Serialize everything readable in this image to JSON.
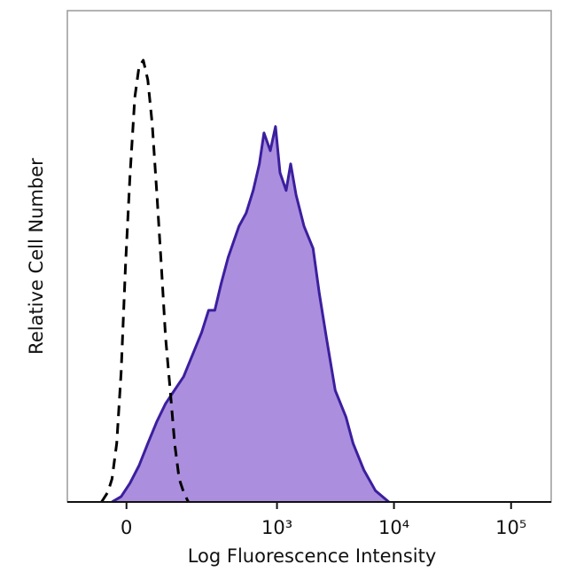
{
  "chart_data": {
    "type": "histogram-overlay",
    "xlabel": "Log Fluorescence Intensity",
    "ylabel": "Relative Cell Number",
    "xscale": "biexponential",
    "xlim": [
      -150,
      220000
    ],
    "ylim": [
      0,
      100
    ],
    "xticks": [
      0,
      {
        "value": 1000,
        "label": "10³"
      },
      {
        "value": 10000,
        "label": "10⁴"
      },
      {
        "value": 100000,
        "label": "10⁵"
      }
    ],
    "series": [
      {
        "color": "#000000",
        "line_style": "dashed",
        "fill": false,
        "x": [
          -53,
          -39,
          -30,
          -20,
          -11,
          -2,
          7,
          17,
          26,
          35,
          45,
          55,
          66,
          77,
          88,
          101,
          114,
          128,
          143,
          160
        ],
        "values": [
          0,
          2.0,
          4.7,
          11.9,
          26.4,
          48.0,
          66.1,
          82.3,
          88.6,
          89.9,
          85.9,
          76.9,
          62.5,
          48.0,
          33.6,
          22.7,
          11.9,
          4.7,
          2.0,
          0
        ]
      },
      {
        "color": "#3b1f9e",
        "fill_color": "#ab8fde",
        "line_style": "solid",
        "fill": true,
        "x": [
          -30,
          -11,
          7,
          26,
          45,
          66,
          88,
          114,
          143,
          184,
          216,
          251,
          286,
          326,
          377,
          469,
          542,
          624,
          706,
          773,
          875,
          971,
          1061,
          1199,
          1310,
          1456,
          1706,
          2038,
          2298,
          2642,
          3151,
          3890,
          4482,
          5533,
          6947,
          9048
        ],
        "values": [
          0,
          1.1,
          3.8,
          7.4,
          11.9,
          16.4,
          20.0,
          22.8,
          25.5,
          30.9,
          34.5,
          39.0,
          39.0,
          44.4,
          49.8,
          56.1,
          58.8,
          63.4,
          68.8,
          75.1,
          71.5,
          76.4,
          67.0,
          63.4,
          68.8,
          62.5,
          56.1,
          51.6,
          42.6,
          33.6,
          22.7,
          17.3,
          11.9,
          6.5,
          2.3,
          0
        ]
      }
    ]
  }
}
